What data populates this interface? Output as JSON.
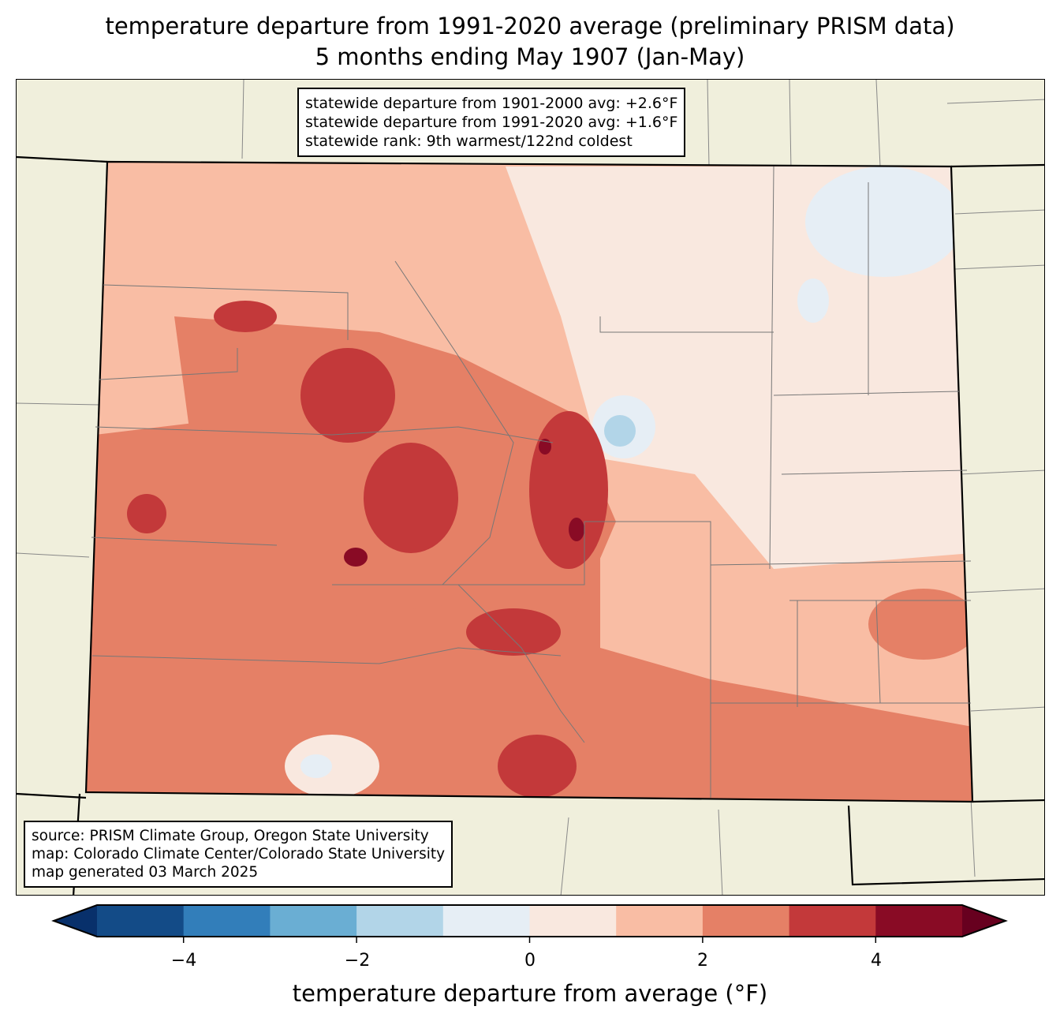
{
  "title": {
    "line1": "temperature departure from 1991-2020 average (preliminary PRISM data)",
    "line2": "5 months ending May 1907 (Jan-May)"
  },
  "stats_box": {
    "line1": "statewide departure from 1901-2000 avg: +2.6°F",
    "line2": "statewide departure from 1991-2020 avg: +1.6°F",
    "line3": "statewide rank: 9th warmest/122nd coldest"
  },
  "source_box": {
    "line1": "source: PRISM Climate Group, Oregon State University",
    "line2": "map: Colorado Climate Center/Colorado State University",
    "line3": "map generated 03 March 2025"
  },
  "colorbar": {
    "label": "temperature departure from average (°F)",
    "ticks": [
      "−4",
      "−2",
      "0",
      "2",
      "4"
    ],
    "bounds": [
      -5,
      -4,
      -3,
      -2,
      -1,
      0,
      1,
      2,
      3,
      4,
      5
    ],
    "colors": [
      "#08306b",
      "#134b87",
      "#327eba",
      "#6aaed3",
      "#b2d5e8",
      "#e6eef5",
      "#f9e8df",
      "#f9bda4",
      "#e58066",
      "#c3393a",
      "#890b25",
      "#67001f"
    ]
  }
}
